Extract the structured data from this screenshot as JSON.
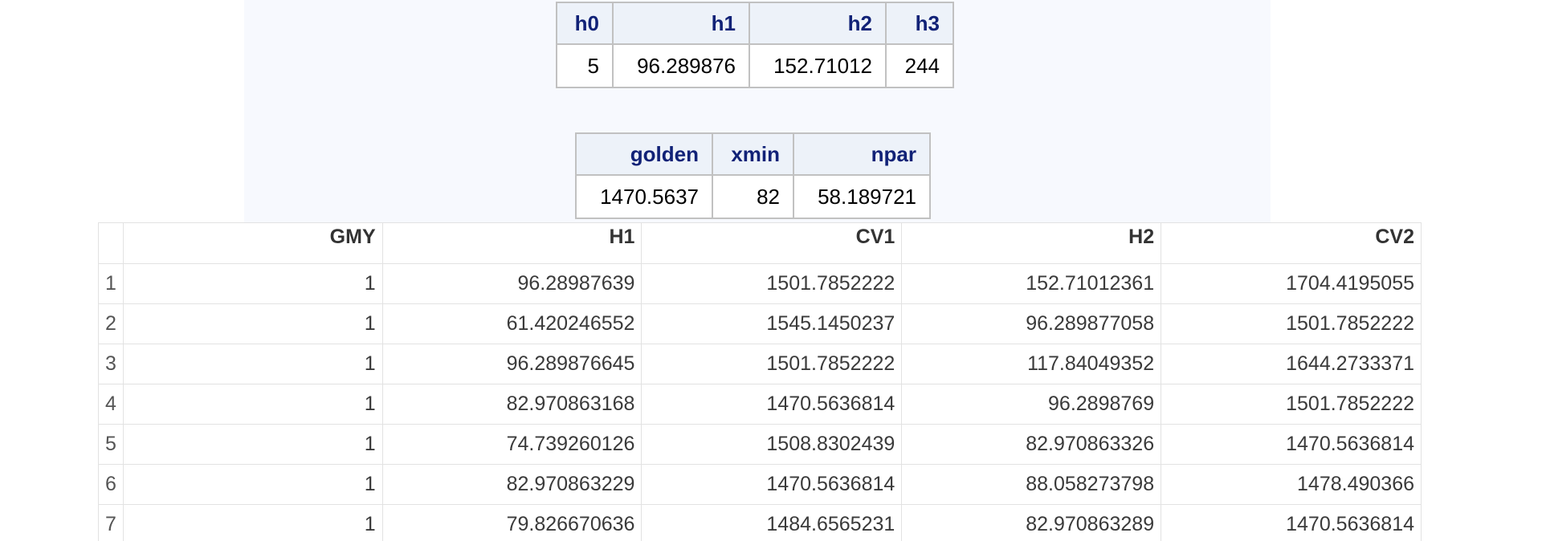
{
  "summary_table_1": {
    "headers": [
      "h0",
      "h1",
      "h2",
      "h3"
    ],
    "row": [
      "5",
      "96.289876",
      "152.71012",
      "244"
    ]
  },
  "summary_table_2": {
    "headers": [
      "golden",
      "xmin",
      "npar"
    ],
    "row": [
      "1470.5637",
      "82",
      "58.189721"
    ]
  },
  "data_grid": {
    "headers": [
      "",
      "GMY",
      "H1",
      "CV1",
      "H2",
      "CV2"
    ],
    "rows": [
      [
        "1",
        "1",
        "96.28987639",
        "1501.7852222",
        "152.71012361",
        "1704.4195055"
      ],
      [
        "2",
        "1",
        "61.420246552",
        "1545.1450237",
        "96.289877058",
        "1501.7852222"
      ],
      [
        "3",
        "1",
        "96.289876645",
        "1501.7852222",
        "117.84049352",
        "1644.2733371"
      ],
      [
        "4",
        "1",
        "82.970863168",
        "1470.5636814",
        "96.2898769",
        "1501.7852222"
      ],
      [
        "5",
        "1",
        "74.739260126",
        "1508.8302439",
        "82.970863326",
        "1470.5636814"
      ],
      [
        "6",
        "1",
        "82.970863229",
        "1470.5636814",
        "88.058273798",
        "1478.490366"
      ],
      [
        "7",
        "1",
        "79.826670636",
        "1484.6565231",
        "82.970863289",
        "1470.5636814"
      ]
    ]
  }
}
